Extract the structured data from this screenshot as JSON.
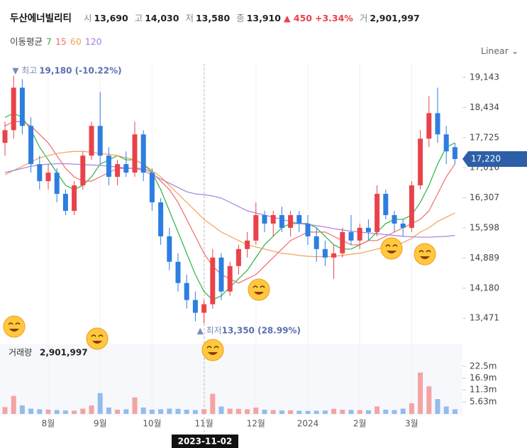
{
  "header": {
    "name": "두산에너빌리티",
    "open_label": "시",
    "open": "13,690",
    "high_label": "고",
    "high": "14,030",
    "low_label": "저",
    "low": "13,580",
    "close_label": "종",
    "close": "13,910",
    "change": "▲ 450",
    "change_pct": "+3.34%",
    "volume_label": "거",
    "volume": "2,901,997"
  },
  "scale": "Linear",
  "chart_data": [
    {
      "type": "candlestick",
      "legend_title": "이동평균",
      "up_color": "#e8434a",
      "down_color": "#2d7ee0",
      "categories": [
        null,
        null,
        null,
        null,
        null,
        "8월",
        null,
        null,
        null,
        null,
        null,
        "9월",
        null,
        null,
        null,
        null,
        null,
        "10월",
        null,
        null,
        null,
        null,
        null,
        "11월",
        null,
        null,
        null,
        null,
        null,
        "12월",
        null,
        null,
        null,
        null,
        null,
        "2024",
        null,
        null,
        null,
        null,
        null,
        "2월",
        null,
        null,
        null,
        null,
        null,
        "3월",
        null,
        null,
        null,
        null,
        null
      ],
      "open": [
        17600,
        17900,
        18900,
        18000,
        17100,
        16700,
        16900,
        16400,
        16000,
        16600,
        17300,
        18000,
        17300,
        16800,
        17100,
        16900,
        17800,
        16900,
        16200,
        15400,
        14800,
        14300,
        13900,
        13600,
        13800,
        14900,
        14100,
        14700,
        15100,
        15300,
        15900,
        15700,
        15900,
        15600,
        15900,
        15700,
        15400,
        15100,
        14900,
        15000,
        15500,
        15300,
        15600,
        15500,
        16400,
        15900,
        15700,
        15600,
        16600,
        17700,
        18300,
        17800,
        17500
      ],
      "high": [
        18100,
        19180,
        19100,
        18200,
        17300,
        17100,
        17000,
        16500,
        16700,
        17400,
        18100,
        18800,
        17500,
        17200,
        17400,
        18100,
        17900,
        17000,
        16300,
        15600,
        15000,
        14500,
        14100,
        13900,
        15100,
        15000,
        14800,
        15200,
        15500,
        16200,
        16000,
        16000,
        16100,
        16000,
        16000,
        15900,
        15600,
        15300,
        15200,
        15600,
        15900,
        15700,
        15800,
        16600,
        16500,
        16000,
        15800,
        16700,
        17900,
        18700,
        18900,
        18000,
        17600
      ],
      "low": [
        17300,
        17700,
        17800,
        16900,
        16500,
        16500,
        16200,
        15900,
        15900,
        16500,
        17200,
        17100,
        16600,
        16600,
        16800,
        16800,
        16700,
        16000,
        15200,
        14600,
        14100,
        13700,
        13400,
        13350,
        13700,
        13900,
        14000,
        14500,
        14900,
        15200,
        15500,
        15400,
        15500,
        15400,
        15500,
        15200,
        14800,
        14700,
        14400,
        14900,
        15200,
        15100,
        15300,
        15400,
        15800,
        15500,
        15400,
        15500,
        16500,
        17500,
        17600,
        17100,
        17100
      ],
      "close": [
        17900,
        18900,
        18000,
        17100,
        16700,
        16900,
        16400,
        16000,
        16600,
        17300,
        18000,
        17300,
        16800,
        17100,
        16900,
        17800,
        16900,
        16200,
        15400,
        14800,
        14300,
        13900,
        13600,
        13800,
        14900,
        14100,
        14700,
        15100,
        15300,
        15900,
        15700,
        15900,
        15600,
        15900,
        15700,
        15400,
        15100,
        14900,
        15000,
        15500,
        15300,
        15600,
        15500,
        16400,
        15900,
        15700,
        15600,
        16600,
        17700,
        18300,
        17800,
        17400,
        17220
      ],
      "series": [
        {
          "name": "7",
          "color": "#2fb344",
          "values": [
            18200,
            18300,
            18200,
            17900,
            17500,
            17200,
            16900,
            16600,
            16500,
            16600,
            16800,
            17100,
            17200,
            17300,
            17200,
            17200,
            17100,
            16900,
            16500,
            16000,
            15500,
            15000,
            14500,
            14100,
            13900,
            14000,
            14200,
            14400,
            14600,
            14900,
            15200,
            15400,
            15600,
            15700,
            15700,
            15700,
            15600,
            15400,
            15200,
            15100,
            15100,
            15200,
            15300,
            15500,
            15700,
            15800,
            15800,
            15900,
            16200,
            16600,
            17100,
            17500,
            17600
          ]
        },
        {
          "name": "15",
          "color": "#ef6c6c",
          "values": [
            18000,
            18100,
            18100,
            18000,
            17800,
            17600,
            17300,
            17000,
            16800,
            16700,
            16700,
            16800,
            16900,
            17000,
            17000,
            17000,
            17000,
            16900,
            16700,
            16500,
            16200,
            15800,
            15400,
            15000,
            14700,
            14500,
            14400,
            14300,
            14400,
            14500,
            14700,
            14900,
            15100,
            15300,
            15400,
            15500,
            15500,
            15500,
            15400,
            15300,
            15200,
            15200,
            15300,
            15300,
            15400,
            15500,
            15600,
            15700,
            15800,
            16000,
            16400,
            16800,
            17100
          ]
        },
        {
          "name": "60",
          "color": "#f5a05a",
          "values": [
            16850,
            16950,
            17050,
            17150,
            17250,
            17300,
            17350,
            17380,
            17400,
            17400,
            17380,
            17350,
            17330,
            17300,
            17250,
            17200,
            17100,
            16950,
            16800,
            16600,
            16400,
            16200,
            16000,
            15800,
            15650,
            15500,
            15400,
            15300,
            15200,
            15150,
            15100,
            15050,
            15000,
            14980,
            14950,
            14930,
            14920,
            14920,
            14930,
            14950,
            14980,
            15000,
            15050,
            15100,
            15150,
            15200,
            15250,
            15350,
            15500,
            15600,
            15750,
            15850,
            15950
          ]
        },
        {
          "name": "120",
          "color": "#a57de0",
          "values": [
            16900,
            16950,
            17000,
            17050,
            17080,
            17100,
            17110,
            17110,
            17100,
            17090,
            17080,
            17070,
            17050,
            17030,
            17010,
            17000,
            16950,
            16850,
            16750,
            16650,
            16550,
            16450,
            16400,
            16380,
            16350,
            16300,
            16200,
            16100,
            16000,
            15950,
            15900,
            15850,
            15800,
            15750,
            15700,
            15680,
            15650,
            15620,
            15580,
            15550,
            15520,
            15500,
            15480,
            15460,
            15440,
            15420,
            15400,
            15390,
            15380,
            15380,
            15390,
            15400,
            15420
          ]
        }
      ],
      "ylim": [
        12940,
        19460
      ],
      "yticks": [
        {
          "value": 19143,
          "label": "19,143"
        },
        {
          "value": 18434,
          "label": "18,434"
        },
        {
          "value": 17725,
          "label": "17,725"
        },
        {
          "value": 17016,
          "label": "17,016"
        },
        {
          "value": 16307,
          "label": "16,307"
        },
        {
          "value": 15598,
          "label": "15,598"
        },
        {
          "value": 14889,
          "label": "14,889"
        },
        {
          "value": 14180,
          "label": "14,180"
        },
        {
          "value": 13471,
          "label": "13,471"
        }
      ],
      "last_price": {
        "value": 17220,
        "label": "17,220"
      },
      "high_note": "▼ 최고",
      "high_note_value": "19,180 (-10.22%)",
      "low_note": "▲ 최저",
      "low_note_value": "13,350 (28.99%)",
      "crosshair_label": "2023-11-02"
    },
    {
      "type": "bar",
      "title": "거래량",
      "current": "2,901,997",
      "values": [
        3200000,
        8500000,
        4000000,
        2500000,
        2200000,
        2000000,
        1800000,
        1600000,
        1500000,
        2500000,
        4000000,
        9800000,
        3000000,
        2000000,
        2200000,
        7800000,
        3000000,
        2000000,
        2200000,
        2500000,
        2400000,
        2000000,
        1800000,
        2200000,
        9500000,
        3500000,
        2500000,
        2400000,
        2200000,
        3000000,
        2000000,
        1800000,
        1600000,
        1700000,
        1500000,
        1400000,
        1500000,
        1600000,
        2400000,
        2000000,
        1900000,
        1800000,
        1700000,
        3500000,
        2000000,
        1800000,
        2500000,
        5000000,
        19500000,
        13000000,
        7000000,
        3500000,
        2200000
      ],
      "ylim": [
        0,
        32800000
      ],
      "yticks": [
        {
          "value": 22500000,
          "label": "22.5m"
        },
        {
          "value": 16900000,
          "label": "16.9m"
        },
        {
          "value": 11300000,
          "label": "11.3m"
        },
        {
          "value": 5630000,
          "label": "5.63m"
        }
      ]
    }
  ]
}
